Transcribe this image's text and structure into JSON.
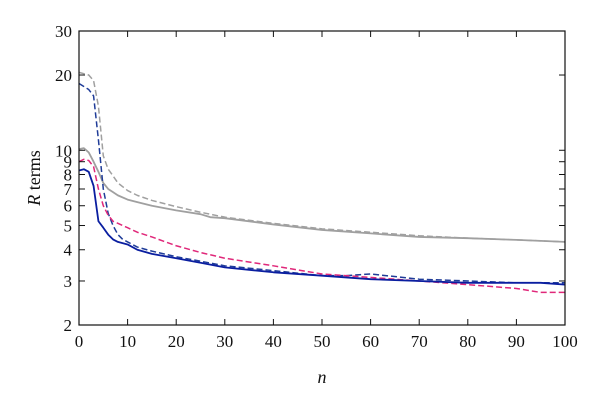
{
  "chart_data": {
    "type": "line",
    "title": "",
    "xlabel": "n",
    "ylabel": {
      "italic": "R",
      "rest": " terms"
    },
    "xlim": [
      0,
      100
    ],
    "ylim": [
      2,
      30
    ],
    "yscale": "log",
    "x_ticks": [
      0,
      10,
      20,
      30,
      40,
      50,
      60,
      70,
      80,
      90,
      100
    ],
    "y_ticks": [
      2,
      3,
      4,
      5,
      6,
      7,
      8,
      9,
      10,
      20,
      30
    ],
    "grid": false,
    "legend": "none",
    "series": [
      {
        "color": "#a0a0a0",
        "style": "dashed",
        "x": [
          0,
          2,
          3,
          4,
          5,
          6,
          7,
          8,
          10,
          12,
          15,
          20,
          25,
          30,
          40,
          50,
          60,
          70,
          80,
          90,
          100
        ],
        "y": [
          20.5,
          20.0,
          19.0,
          15.0,
          9.5,
          8.4,
          7.9,
          7.4,
          6.9,
          6.6,
          6.3,
          5.95,
          5.65,
          5.4,
          5.1,
          4.85,
          4.7,
          4.55,
          4.45,
          4.38,
          4.3
        ]
      },
      {
        "color": "#a0a0a0",
        "style": "solid",
        "x": [
          0,
          1,
          2,
          3,
          4,
          5,
          6,
          7,
          8,
          10,
          12,
          15,
          20,
          25,
          27,
          30,
          40,
          50,
          60,
          70,
          80,
          90,
          100
        ],
        "y": [
          10.1,
          10.2,
          9.8,
          9.0,
          8.2,
          7.4,
          7.0,
          6.8,
          6.6,
          6.35,
          6.2,
          6.0,
          5.75,
          5.55,
          5.4,
          5.35,
          5.05,
          4.8,
          4.65,
          4.5,
          4.45,
          4.38,
          4.3
        ]
      },
      {
        "color": "#1f3c98",
        "style": "dashed",
        "x": [
          0,
          1,
          2,
          3,
          4,
          5,
          6,
          7,
          8,
          9,
          10,
          12,
          15,
          20,
          25,
          30,
          40,
          50,
          55,
          60,
          70,
          80,
          90,
          100
        ],
        "y": [
          18.5,
          18.0,
          17.5,
          16.5,
          11.0,
          7.0,
          5.6,
          5.0,
          4.6,
          4.4,
          4.3,
          4.1,
          3.95,
          3.75,
          3.6,
          3.45,
          3.3,
          3.15,
          3.15,
          3.2,
          3.05,
          3.0,
          2.95,
          2.95
        ]
      },
      {
        "color": "#e0287a",
        "style": "dashed",
        "x": [
          0,
          1,
          2,
          3,
          4,
          5,
          6,
          7,
          8,
          10,
          12,
          15,
          20,
          25,
          30,
          40,
          50,
          60,
          70,
          80,
          90,
          95,
          100
        ],
        "y": [
          9.0,
          9.2,
          9.1,
          8.6,
          7.0,
          6.0,
          5.5,
          5.2,
          5.1,
          4.9,
          4.7,
          4.5,
          4.15,
          3.9,
          3.7,
          3.45,
          3.2,
          3.1,
          3.0,
          2.9,
          2.8,
          2.7,
          2.7
        ]
      },
      {
        "color": "#0a1ea0",
        "style": "solid",
        "x": [
          0,
          1,
          2,
          3,
          4,
          5,
          6,
          7,
          8,
          10,
          12,
          15,
          20,
          25,
          30,
          40,
          50,
          60,
          70,
          80,
          90,
          95,
          100
        ],
        "y": [
          8.3,
          8.4,
          8.2,
          7.2,
          5.2,
          4.9,
          4.6,
          4.4,
          4.3,
          4.2,
          4.0,
          3.85,
          3.7,
          3.55,
          3.4,
          3.25,
          3.15,
          3.05,
          3.0,
          2.95,
          2.95,
          2.95,
          2.9
        ]
      }
    ]
  }
}
